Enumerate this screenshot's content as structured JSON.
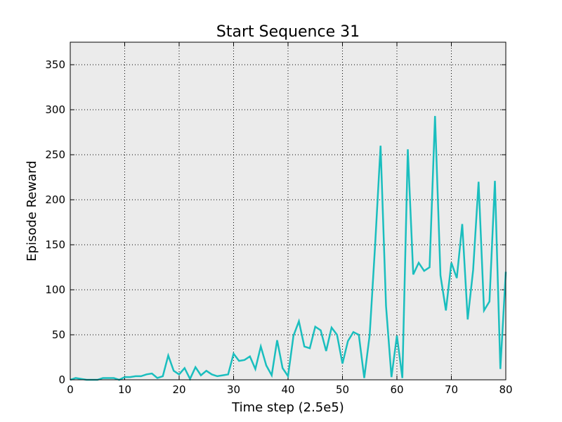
{
  "chart_data": {
    "type": "line",
    "title": "Start Sequence 31",
    "xlabel": "Time step (2.5e5)",
    "ylabel": "Episode Reward",
    "xlim": [
      0,
      80
    ],
    "ylim": [
      0,
      375
    ],
    "xticks": [
      0,
      10,
      20,
      30,
      40,
      50,
      60,
      70,
      80
    ],
    "yticks": [
      0,
      50,
      100,
      150,
      200,
      250,
      300,
      350
    ],
    "grid": true,
    "line_color": "#1ABEBE",
    "background_color": "#EBEBEB",
    "series": [
      {
        "x": [
          0,
          1,
          2,
          3,
          4,
          5,
          6,
          7,
          8,
          9,
          10,
          11,
          12,
          13,
          14,
          15,
          16,
          17,
          18,
          19,
          20,
          21,
          22,
          23,
          24,
          25,
          26,
          27,
          28,
          29,
          30,
          31,
          32,
          33,
          34,
          35,
          36,
          37,
          38,
          39,
          40,
          41,
          42,
          43,
          44,
          45,
          46,
          47,
          48,
          49,
          50,
          51,
          52,
          53,
          54,
          55,
          56,
          57,
          58,
          59,
          60,
          61,
          62,
          63,
          64,
          65,
          66,
          67,
          68,
          69,
          70,
          71,
          72,
          73,
          74,
          75,
          76,
          77,
          78,
          79,
          80
        ],
        "values": [
          0,
          2,
          1,
          0,
          0,
          0,
          2,
          2,
          2,
          0,
          3,
          3,
          4,
          4,
          6,
          7,
          2,
          4,
          27,
          10,
          6,
          13,
          1,
          14,
          5,
          10,
          6,
          4,
          5,
          6,
          29,
          21,
          22,
          26,
          12,
          37,
          16,
          5,
          44,
          13,
          4,
          49,
          65,
          37,
          35,
          59,
          55,
          32,
          58,
          50,
          18,
          43,
          53,
          50,
          2,
          50,
          150,
          260,
          82,
          3,
          49,
          2,
          256,
          117,
          130,
          121,
          125,
          293,
          116,
          77,
          130,
          113,
          173,
          67,
          122,
          220,
          77,
          87,
          221,
          12,
          120
        ]
      }
    ]
  }
}
